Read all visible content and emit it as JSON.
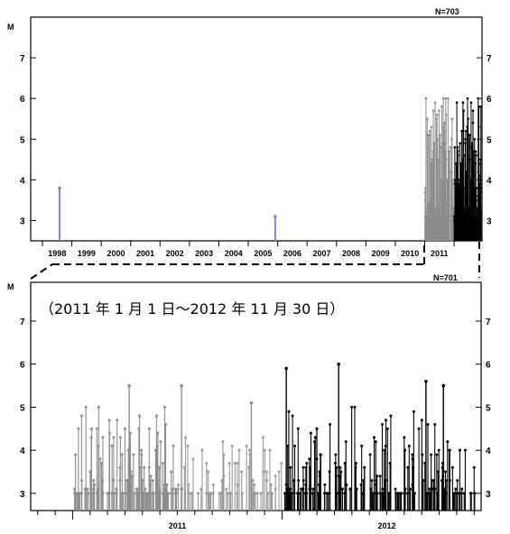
{
  "chart_data": [
    {
      "type": "stem",
      "axis_label_left": "M",
      "count_label": "N=703",
      "ylim": [
        2.5,
        8
      ],
      "y_ticks": [
        "3",
        "4",
        "5",
        "6",
        "7"
      ],
      "x_ticks": [
        "1998",
        "1999",
        "2000",
        "2001",
        "2002",
        "2003",
        "2004",
        "2005",
        "2006",
        "2007",
        "2008",
        "2009",
        "2010",
        "2011"
      ],
      "isolated_events": [
        {
          "date": "1998-08",
          "M": 3.8,
          "color": "#8a7fd6"
        },
        {
          "date": "2005-12",
          "M": 3.1,
          "color": "#8a7fd6"
        }
      ],
      "cluster": {
        "from": "2011-01-01",
        "to": "2012-11-30",
        "max_M": 6.0,
        "colors": {
          "2011": "#8c8c8c",
          "2012": "#000000"
        }
      }
    },
    {
      "type": "stem",
      "axis_label_left": "M",
      "count_label": "N=701",
      "period_note": "（2011 年 1 月 1 日～2012 年 11 月 30 日）",
      "ylim": [
        2.6,
        7.9
      ],
      "y_ticks": [
        "3",
        "4",
        "5",
        "6",
        "7"
      ],
      "x_ticks": [
        "2011",
        "2012"
      ],
      "series": [
        {
          "name": "2011",
          "color": "#8c8c8c"
        },
        {
          "name": "2012",
          "color": "#000000"
        }
      ],
      "notable_events": [
        {
          "date": "2011-04",
          "M": 5.5
        },
        {
          "date": "2011-07",
          "M": 5.5
        },
        {
          "date": "2011-11",
          "M": 5.1
        },
        {
          "date": "2012-01",
          "M": 5.9
        },
        {
          "date": "2012-04",
          "M": 6.0
        },
        {
          "date": "2012-09",
          "M": 5.6
        },
        {
          "date": "2012-10",
          "M": 5.5
        }
      ]
    }
  ]
}
